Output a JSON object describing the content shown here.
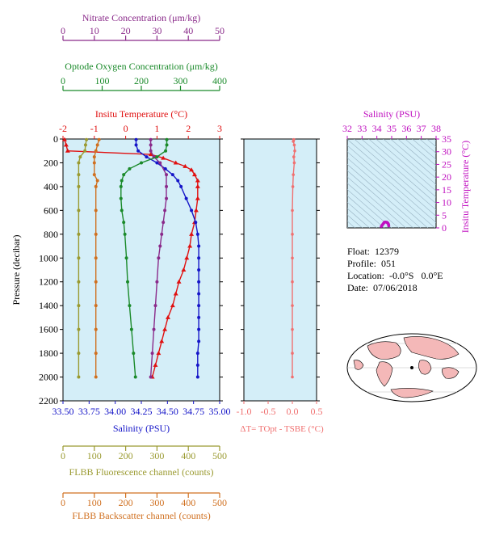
{
  "colors": {
    "nitrate": "#8a2a8a",
    "oxygen": "#1a8a2a",
    "temperature": "#e01010",
    "salinity": "#1515c8",
    "salinity_ts": "#c010c0",
    "fluorescence": "#9a9a30",
    "backscatter": "#d07020",
    "delta_t": "#f07070",
    "plot_bg": "#d4eef8",
    "land": "#f4b8b8"
  },
  "info": {
    "float_label": "Float:",
    "float_value": "12379",
    "profile_label": "Profile:",
    "profile_value": "051",
    "location_label": "Location:",
    "location_value": "-0.0°S   0.0°E",
    "date_label": "Date:",
    "date_value": "07/06/2018"
  },
  "chart_data": [
    {
      "type": "line",
      "title": "",
      "ylabel": "Pressure (decibar)",
      "ylim": [
        2200,
        0
      ],
      "y_ticks": [
        "0",
        "200",
        "400",
        "600",
        "800",
        "1000",
        "1200",
        "1400",
        "1600",
        "1800",
        "2000",
        "2200"
      ],
      "axes": [
        {
          "name": "nitrate",
          "label": "Nitrate Concentration (μm/kg)",
          "range": [
            0,
            50
          ],
          "ticks": [
            "0",
            "10",
            "20",
            "30",
            "40",
            "50"
          ]
        },
        {
          "name": "oxygen",
          "label": "Optode Oxygen Concentration (μm/kg)",
          "range": [
            0,
            400
          ],
          "ticks": [
            "0",
            "100",
            "200",
            "300",
            "400"
          ]
        },
        {
          "name": "temperature",
          "label": "Insitu Temperature (°C)",
          "range": [
            -2,
            3
          ],
          "ticks": [
            "-2",
            "-1",
            "0",
            "1",
            "2",
            "3"
          ]
        },
        {
          "name": "salinity",
          "label": "Salinity (PSU)",
          "range": [
            33.5,
            35.0
          ],
          "ticks": [
            "33.50",
            "33.75",
            "34.00",
            "34.25",
            "34.50",
            "34.75",
            "35.00"
          ]
        },
        {
          "name": "fluorescence",
          "label": "FLBB Fluorescence channel (counts)",
          "range": [
            0,
            500
          ],
          "ticks": [
            "0",
            "100",
            "200",
            "300",
            "400",
            "500"
          ]
        },
        {
          "name": "backscatter",
          "label": "FLBB Backscatter channel (counts)",
          "range": [
            0,
            500
          ],
          "ticks": [
            "0",
            "100",
            "200",
            "300",
            "400",
            "500"
          ]
        }
      ],
      "series": [
        {
          "name": "temperature",
          "axis": "temperature",
          "p": [
            5,
            50,
            100,
            130,
            160,
            200,
            230,
            260,
            300,
            350,
            400,
            500,
            600,
            700,
            800,
            900,
            1000,
            1100,
            1200,
            1300,
            1400,
            1500,
            1600,
            1700,
            1800,
            1900,
            2000
          ],
          "values": [
            -1.95,
            -1.9,
            -1.85,
            0.8,
            1.2,
            1.6,
            1.9,
            2.1,
            2.2,
            2.3,
            2.3,
            2.3,
            2.25,
            2.2,
            2.1,
            2.05,
            1.95,
            1.85,
            1.7,
            1.6,
            1.5,
            1.35,
            1.25,
            1.15,
            1.05,
            0.95,
            0.85
          ]
        },
        {
          "name": "salinity",
          "axis": "salinity",
          "p": [
            5,
            50,
            100,
            150,
            200,
            250,
            300,
            350,
            400,
            500,
            600,
            700,
            800,
            900,
            1000,
            1100,
            1200,
            1300,
            1400,
            1500,
            1600,
            1700,
            1800,
            1900,
            2000
          ],
          "values": [
            34.2,
            34.2,
            34.22,
            34.3,
            34.4,
            34.48,
            34.55,
            34.6,
            34.63,
            34.68,
            34.73,
            34.77,
            34.79,
            34.8,
            34.8,
            34.8,
            34.8,
            34.8,
            34.8,
            34.8,
            34.8,
            34.8,
            34.79,
            34.79,
            34.79
          ]
        },
        {
          "name": "nitrate",
          "axis": "nitrate",
          "p": [
            5,
            50,
            100,
            150,
            200,
            300,
            400,
            500,
            600,
            700,
            800,
            900,
            1000,
            1200,
            1400,
            1600,
            1800,
            2000
          ],
          "values": [
            28,
            28,
            28,
            29,
            31,
            33,
            33,
            33,
            32.5,
            32,
            31.5,
            31,
            30.5,
            30,
            29.5,
            29,
            28.5,
            28
          ]
        },
        {
          "name": "oxygen",
          "axis": "oxygen",
          "p": [
            5,
            50,
            100,
            150,
            200,
            250,
            300,
            350,
            400,
            500,
            600,
            700,
            800,
            1000,
            1200,
            1400,
            1600,
            1800,
            2000
          ],
          "values": [
            265,
            265,
            262,
            240,
            200,
            170,
            155,
            150,
            148,
            148,
            150,
            155,
            158,
            162,
            165,
            170,
            175,
            180,
            185
          ]
        },
        {
          "name": "fluorescence",
          "axis": "fluorescence",
          "p": [
            5,
            50,
            100,
            150,
            200,
            300,
            400,
            600,
            800,
            1000,
            1200,
            1400,
            1600,
            1800,
            2000
          ],
          "values": [
            75,
            72,
            70,
            55,
            50,
            50,
            50,
            50,
            50,
            50,
            50,
            50,
            50,
            50,
            50
          ]
        },
        {
          "name": "backscatter",
          "axis": "backscatter",
          "p": [
            5,
            50,
            100,
            150,
            200,
            300,
            350,
            400,
            600,
            800,
            1000,
            1200,
            1400,
            1600,
            1800,
            2000
          ],
          "values": [
            115,
            110,
            105,
            100,
            100,
            100,
            110,
            105,
            105,
            105,
            105,
            105,
            105,
            105,
            105,
            105
          ]
        }
      ]
    },
    {
      "type": "line",
      "xlabel": "ΔT= TOpt - TSBE (°C)",
      "xlim": [
        -1.0,
        0.5
      ],
      "x_ticks": [
        "-1.0",
        "-0.5",
        "0.0",
        "0.5"
      ],
      "series": [
        {
          "name": "delta_t",
          "p": [
            5,
            20,
            50,
            100,
            150,
            200,
            300,
            400,
            600,
            800,
            1000,
            1200,
            1400,
            1600,
            1800,
            2000
          ],
          "values": [
            0.03,
            0.02,
            0.04,
            0.05,
            0.03,
            0.04,
            0.02,
            0.01,
            0.0,
            0.0,
            0.0,
            0.0,
            0.0,
            0.0,
            0.0,
            0.0
          ]
        }
      ]
    },
    {
      "type": "scatter",
      "title": "Salinity (PSU)",
      "ylabel": "Insitu Temperature (°C)",
      "xlim": [
        32,
        38
      ],
      "ylim": [
        0,
        35
      ],
      "x_ticks": [
        "32",
        "33",
        "34",
        "35",
        "36",
        "37",
        "38"
      ],
      "y_ticks": [
        "0",
        "5",
        "10",
        "15",
        "20",
        "25",
        "30",
        "35"
      ],
      "series": [
        {
          "name": "ts",
          "x": [
            34.8,
            34.8,
            34.79,
            34.78,
            34.75,
            34.72,
            34.68,
            34.6,
            34.55,
            34.5,
            34.45,
            34.4,
            34.35,
            34.3
          ],
          "y": [
            0.8,
            1.0,
            1.2,
            1.5,
            1.8,
            2.0,
            2.2,
            2.3,
            2.3,
            2.2,
            1.8,
            1.4,
            1.0,
            0.6
          ]
        }
      ]
    }
  ]
}
